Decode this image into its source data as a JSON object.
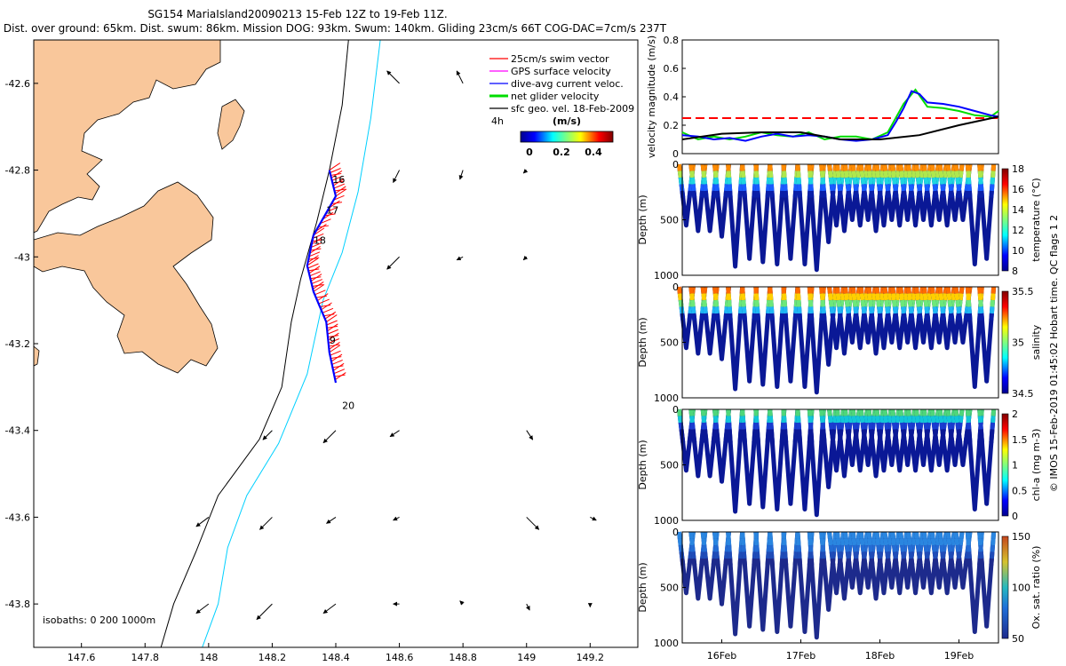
{
  "title_lines": [
    "SG154 MariaIsland20090213 15-Feb 12Z to 19-Feb 11Z.",
    "Dist. over ground: 65km. Dist. swum: 86km. Mission DOG: 93km. Swum: 140km. Gliding 23cm/s 66T COG-DAC=7cm/s 237T"
  ],
  "side_note": "© IMOS 15-Feb-2019 01:45:02 Hobart time. QC flags 1  2",
  "colors": {
    "land": "#f9c79b",
    "swim_vector": "#ff0000",
    "gps_velocity": "#ff00ff",
    "dive_avg_current": "#0000ff",
    "net_glider": "#00dd00",
    "geo_vel": "#000000",
    "isobath_200": "#000000",
    "isobath_1000": "#00d0ff",
    "threshold_line": "#ff0000"
  },
  "chart_data": [
    {
      "type": "map",
      "xlim": [
        147.45,
        149.35
      ],
      "ylim": [
        -43.9,
        -42.5
      ],
      "xticks": [
        147.6,
        147.8,
        148,
        148.2,
        148.4,
        148.6,
        148.8,
        149,
        149.2
      ],
      "xtick_labels": [
        "147.6",
        "147.8",
        "148",
        "148.2",
        "148.4",
        "148.6",
        "148.8",
        "149",
        "149.2"
      ],
      "yticks": [
        -42.6,
        -42.8,
        -43,
        -43.2,
        -43.4,
        -43.6,
        -43.8
      ],
      "ytick_labels": [
        "-42.6",
        "-42.8",
        "-43",
        "-43.2",
        "-43.4",
        "-43.6",
        "-43.8"
      ],
      "legend": [
        {
          "label": "25cm/s swim vector",
          "color": "#ff0000"
        },
        {
          "label": "GPS surface velocity",
          "color": "#ff00ff"
        },
        {
          "label": "dive-avg current veloc.",
          "color": "#0000ff"
        },
        {
          "label": "net glider velocity",
          "color": "#00dd00"
        },
        {
          "label": "sfc geo. vel. 18-Feb-2009",
          "color": "#000000"
        }
      ],
      "colorbar": {
        "label": "(m/s)",
        "ticks": [
          "0",
          "0.2",
          "0.4"
        ],
        "note": "4h",
        "range": [
          0,
          0.5
        ]
      },
      "isobath_label": "isobaths: 0   200  1000m",
      "day_labels": [
        {
          "text": "16",
          "lon": 148.39,
          "lat": -42.83
        },
        {
          "text": "17",
          "lon": 148.37,
          "lat": -42.9
        },
        {
          "text": "18",
          "lon": 148.33,
          "lat": -42.97
        },
        {
          "text": "9",
          "lon": 148.38,
          "lat": -43.2
        },
        {
          "text": "20",
          "lon": 148.42,
          "lat": -43.35
        }
      ],
      "track": [
        [
          148.38,
          -42.8
        ],
        [
          148.4,
          -42.86
        ],
        [
          148.33,
          -42.95
        ],
        [
          148.31,
          -43.02
        ],
        [
          148.33,
          -43.08
        ],
        [
          148.37,
          -43.15
        ],
        [
          148.38,
          -43.22
        ],
        [
          148.4,
          -43.29
        ]
      ],
      "isobath_200": [
        [
          148.44,
          -42.5
        ],
        [
          148.42,
          -42.65
        ],
        [
          148.38,
          -42.8
        ],
        [
          148.34,
          -42.92
        ],
        [
          148.29,
          -43.05
        ],
        [
          148.26,
          -43.15
        ],
        [
          148.23,
          -43.3
        ],
        [
          148.16,
          -43.42
        ],
        [
          148.03,
          -43.55
        ],
        [
          147.96,
          -43.68
        ],
        [
          147.89,
          -43.8
        ],
        [
          147.85,
          -43.9
        ]
      ],
      "isobath_1000": [
        [
          148.54,
          -42.5
        ],
        [
          148.51,
          -42.68
        ],
        [
          148.47,
          -42.85
        ],
        [
          148.42,
          -42.99
        ],
        [
          148.36,
          -43.1
        ],
        [
          148.31,
          -43.27
        ],
        [
          148.22,
          -43.43
        ],
        [
          148.12,
          -43.55
        ],
        [
          148.06,
          -43.67
        ],
        [
          148.03,
          -43.8
        ],
        [
          147.98,
          -43.9
        ]
      ],
      "geo_vectors": [
        {
          "lon": 148.6,
          "lat": -42.6,
          "u": -0.02,
          "v": 0.02
        },
        {
          "lon": 148.8,
          "lat": -42.6,
          "u": -0.01,
          "v": 0.02
        },
        {
          "lon": 148.6,
          "lat": -42.8,
          "u": -0.01,
          "v": -0.02
        },
        {
          "lon": 148.8,
          "lat": -42.8,
          "u": -0.005,
          "v": -0.015
        },
        {
          "lon": 149,
          "lat": -42.8,
          "u": -0.005,
          "v": -0.005
        },
        {
          "lon": 148.6,
          "lat": -43,
          "u": -0.02,
          "v": -0.02
        },
        {
          "lon": 148.8,
          "lat": -43,
          "u": -0.01,
          "v": -0.005
        },
        {
          "lon": 149,
          "lat": -43,
          "u": -0.005,
          "v": -0.005
        },
        {
          "lon": 148,
          "lat": -43.6,
          "u": -0.02,
          "v": -0.015
        },
        {
          "lon": 148.2,
          "lat": -43.6,
          "u": -0.02,
          "v": -0.02
        },
        {
          "lon": 148.4,
          "lat": -43.6,
          "u": -0.015,
          "v": -0.01
        },
        {
          "lon": 148.6,
          "lat": -43.6,
          "u": -0.01,
          "v": -0.005
        },
        {
          "lon": 149,
          "lat": -43.6,
          "u": 0.02,
          "v": -0.02
        },
        {
          "lon": 149.2,
          "lat": -43.6,
          "u": 0.01,
          "v": -0.005
        },
        {
          "lon": 148.2,
          "lat": -43.4,
          "u": -0.015,
          "v": -0.015
        },
        {
          "lon": 148.4,
          "lat": -43.4,
          "u": -0.02,
          "v": -0.02
        },
        {
          "lon": 148.6,
          "lat": -43.4,
          "u": -0.015,
          "v": -0.01
        },
        {
          "lon": 149,
          "lat": -43.4,
          "u": 0.01,
          "v": -0.015
        },
        {
          "lon": 148,
          "lat": -43.8,
          "u": -0.02,
          "v": -0.015
        },
        {
          "lon": 148.2,
          "lat": -43.8,
          "u": -0.025,
          "v": -0.025
        },
        {
          "lon": 148.4,
          "lat": -43.8,
          "u": -0.02,
          "v": -0.015
        },
        {
          "lon": 148.6,
          "lat": -43.8,
          "u": -0.01,
          "v": 0
        },
        {
          "lon": 148.8,
          "lat": -43.8,
          "u": -0.005,
          "v": 0.005
        },
        {
          "lon": 149,
          "lat": -43.8,
          "u": 0.005,
          "v": -0.01
        },
        {
          "lon": 149.2,
          "lat": -43.8,
          "u": 0,
          "v": -0.005
        }
      ]
    },
    {
      "type": "line",
      "ylabel": "velocity magnitude (m/s)",
      "ylim": [
        0,
        0.8
      ],
      "yticks": [
        "0",
        "0.2",
        "0.4",
        "0.6",
        "0.8"
      ],
      "xlim": [
        15.5,
        19.5
      ],
      "threshold": 0.25,
      "series": [
        {
          "color": "#00dd00",
          "x": [
            15.5,
            15.7,
            15.9,
            16.1,
            16.3,
            16.5,
            16.7,
            16.9,
            17.1,
            17.3,
            17.5,
            17.7,
            17.9,
            18.1,
            18.2,
            18.3,
            18.45,
            18.6,
            18.8,
            19.0,
            19.2,
            19.4,
            19.5
          ],
          "y": [
            0.15,
            0.1,
            0.12,
            0.1,
            0.12,
            0.15,
            0.13,
            0.12,
            0.15,
            0.1,
            0.12,
            0.12,
            0.1,
            0.15,
            0.25,
            0.35,
            0.45,
            0.33,
            0.32,
            0.3,
            0.27,
            0.26,
            0.3
          ]
        },
        {
          "color": "#0000ff",
          "x": [
            15.5,
            15.7,
            15.9,
            16.1,
            16.3,
            16.5,
            16.7,
            16.9,
            17.1,
            17.3,
            17.5,
            17.7,
            17.9,
            18.1,
            18.2,
            18.3,
            18.4,
            18.5,
            18.6,
            18.8,
            19.0,
            19.2,
            19.4,
            19.5
          ],
          "y": [
            0.13,
            0.12,
            0.1,
            0.11,
            0.09,
            0.12,
            0.14,
            0.12,
            0.13,
            0.12,
            0.1,
            0.09,
            0.1,
            0.13,
            0.22,
            0.32,
            0.44,
            0.42,
            0.36,
            0.35,
            0.33,
            0.3,
            0.27,
            0.26
          ]
        },
        {
          "color": "#000000",
          "x": [
            15.5,
            16,
            16.5,
            17,
            17.5,
            18,
            18.5,
            19,
            19.5
          ],
          "y": [
            0.1,
            0.14,
            0.15,
            0.15,
            0.1,
            0.1,
            0.13,
            0.2,
            0.26
          ]
        }
      ]
    },
    {
      "type": "scatter",
      "ylabel": "Depth (m)",
      "ylim": [
        1000,
        0
      ],
      "yticks": [
        "0",
        "500",
        "1000"
      ],
      "colorbar_label": "temperature (°C)",
      "colorbar_ticks": [
        "8",
        "10",
        "12",
        "14",
        "16",
        "18"
      ],
      "colormap": "jet"
    },
    {
      "type": "scatter",
      "ylabel": "Depth (m)",
      "ylim": [
        1000,
        0
      ],
      "yticks": [
        "0",
        "500",
        "1000"
      ],
      "colorbar_label": "salinity",
      "colorbar_ticks": [
        "34.5",
        "35",
        "35.5"
      ],
      "colormap": "jet"
    },
    {
      "type": "scatter",
      "ylabel": "Depth (m)",
      "ylim": [
        1000,
        0
      ],
      "yticks": [
        "0",
        "500",
        "1000"
      ],
      "colorbar_label": "chl-a (mg m-3)",
      "colorbar_ticks": [
        "0",
        "0.5",
        "1",
        "1.5",
        "2"
      ],
      "colormap": "jet"
    },
    {
      "type": "scatter",
      "ylabel": "Depth (m)",
      "ylim": [
        1000,
        0
      ],
      "yticks": [
        "0",
        "500",
        "1000"
      ],
      "colorbar_label": "Ox. sat. ratio (%)",
      "colorbar_ticks": [
        "50",
        "100",
        "150"
      ],
      "colormap": "jet",
      "xtick_labels": [
        "16Feb",
        "17Feb",
        "18Feb",
        "19Feb"
      ]
    }
  ],
  "dives": [
    {
      "day": 15.55,
      "max": 550
    },
    {
      "day": 15.7,
      "max": 600
    },
    {
      "day": 15.85,
      "max": 600
    },
    {
      "day": 16.0,
      "max": 650
    },
    {
      "day": 16.17,
      "max": 920
    },
    {
      "day": 16.35,
      "max": 850
    },
    {
      "day": 16.52,
      "max": 880
    },
    {
      "day": 16.7,
      "max": 900
    },
    {
      "day": 16.87,
      "max": 850
    },
    {
      "day": 17.05,
      "max": 900
    },
    {
      "day": 17.2,
      "max": 950
    },
    {
      "day": 17.35,
      "max": 700
    },
    {
      "day": 17.45,
      "max": 550
    },
    {
      "day": 17.55,
      "max": 600
    },
    {
      "day": 17.65,
      "max": 500
    },
    {
      "day": 17.75,
      "max": 550
    },
    {
      "day": 17.85,
      "max": 500
    },
    {
      "day": 17.95,
      "max": 600
    },
    {
      "day": 18.05,
      "max": 550
    },
    {
      "day": 18.15,
      "max": 500
    },
    {
      "day": 18.25,
      "max": 550
    },
    {
      "day": 18.35,
      "max": 500
    },
    {
      "day": 18.45,
      "max": 550
    },
    {
      "day": 18.55,
      "max": 500
    },
    {
      "day": 18.65,
      "max": 550
    },
    {
      "day": 18.75,
      "max": 500
    },
    {
      "day": 18.85,
      "max": 550
    },
    {
      "day": 18.95,
      "max": 500
    },
    {
      "day": 19.05,
      "max": 500
    },
    {
      "day": 19.2,
      "max": 900
    },
    {
      "day": 19.35,
      "max": 850
    }
  ]
}
